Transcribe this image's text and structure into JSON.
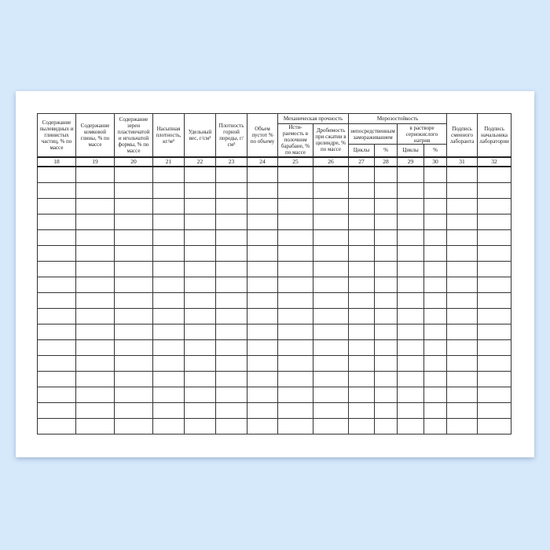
{
  "columns": [
    {
      "num": "18",
      "label": "Содержание пылевидных и глинистых частиц, % по массе"
    },
    {
      "num": "19",
      "label": "Содержание комковой глины, % по массе"
    },
    {
      "num": "20",
      "label": "Содержание зерен пластинчатой и игольчатой формы, % по массе"
    },
    {
      "num": "21",
      "label": "Насыпная плотность, кг/м³"
    },
    {
      "num": "22",
      "label": "Удельный вес, г/см³"
    },
    {
      "num": "23",
      "label": "Плотность горной породы, г/см³"
    },
    {
      "num": "24",
      "label": "Объем пустот % по объему"
    },
    {
      "num": "25",
      "label": "Исти-раемость в полочном барабане, % по массе"
    },
    {
      "num": "26",
      "label": "Дробимость при сжатии в цилиндре, % по массе"
    },
    {
      "num": "27",
      "label": "Циклы"
    },
    {
      "num": "28",
      "label": "%"
    },
    {
      "num": "29",
      "label": "Циклы"
    },
    {
      "num": "30",
      "label": "%"
    },
    {
      "num": "31",
      "label": "Подпись сменного лаборанта"
    },
    {
      "num": "32",
      "label": "Подпись начальника лаборатории"
    }
  ],
  "groups": {
    "mechanical": "Механическая прочность",
    "frost": "Морозостойкость",
    "frost_direct": "непосредственным замораживанием",
    "frost_solution": "в растворе сернокислого натрия"
  },
  "empty_rows": 17
}
